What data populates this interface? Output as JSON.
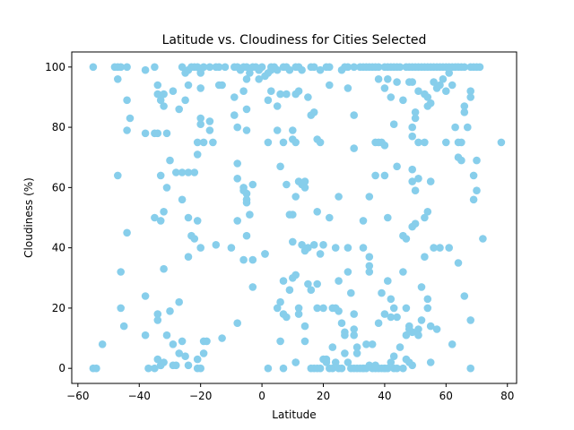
{
  "chart_data": {
    "type": "scatter",
    "title": "Latitude vs. Cloudiness for Cities Selected",
    "xlabel": "Latitude",
    "ylabel": "Cloudiness (%)",
    "xlim": [
      -62,
      83
    ],
    "ylim": [
      -5,
      105
    ],
    "xticks": [
      -60,
      -40,
      -20,
      0,
      20,
      40,
      60,
      80
    ],
    "yticks": [
      0,
      20,
      40,
      60,
      80,
      100
    ],
    "grid": false,
    "color": "#87ceeb",
    "points": [
      [
        -55,
        100
      ],
      [
        -48,
        100
      ],
      [
        -47,
        100
      ],
      [
        -46,
        100
      ],
      [
        -38,
        99
      ],
      [
        -35,
        100
      ],
      [
        -26,
        100
      ],
      [
        -24,
        99
      ],
      [
        -23,
        100
      ],
      [
        -22,
        100
      ],
      [
        -21,
        100
      ],
      [
        -20,
        99
      ],
      [
        -19,
        100
      ],
      [
        -17,
        100
      ],
      [
        -15,
        100
      ],
      [
        -14,
        100
      ],
      [
        -12,
        100
      ],
      [
        -9,
        100
      ],
      [
        -8,
        100
      ],
      [
        -7,
        99
      ],
      [
        -6,
        100
      ],
      [
        -5,
        100
      ],
      [
        -4,
        98
      ],
      [
        -3,
        100
      ],
      [
        -2,
        100
      ],
      [
        -1,
        99
      ],
      [
        0,
        100
      ],
      [
        1,
        97
      ],
      [
        2,
        98
      ],
      [
        3,
        100
      ],
      [
        4,
        100
      ],
      [
        5,
        99
      ],
      [
        7,
        100
      ],
      [
        8,
        100
      ],
      [
        9,
        99
      ],
      [
        11,
        100
      ],
      [
        12,
        100
      ],
      [
        13,
        99
      ],
      [
        16,
        100
      ],
      [
        17,
        100
      ],
      [
        19,
        99
      ],
      [
        21,
        100
      ],
      [
        22,
        100
      ],
      [
        26,
        99
      ],
      [
        28,
        100
      ],
      [
        30,
        100
      ],
      [
        32,
        100
      ],
      [
        33,
        100
      ],
      [
        34,
        100
      ],
      [
        35,
        100
      ],
      [
        36,
        100
      ],
      [
        37,
        100
      ],
      [
        38,
        100
      ],
      [
        40,
        100
      ],
      [
        41,
        100
      ],
      [
        42,
        100
      ],
      [
        43,
        100
      ],
      [
        44,
        100
      ],
      [
        45,
        100
      ],
      [
        47,
        100
      ],
      [
        48,
        100
      ],
      [
        49,
        100
      ],
      [
        50,
        100
      ],
      [
        51,
        100
      ],
      [
        52,
        100
      ],
      [
        53,
        100
      ],
      [
        54,
        100
      ],
      [
        55,
        100
      ],
      [
        56,
        100
      ],
      [
        57,
        100
      ],
      [
        58,
        100
      ],
      [
        59,
        100
      ],
      [
        60,
        100
      ],
      [
        61,
        100
      ],
      [
        62,
        100
      ],
      [
        63,
        100
      ],
      [
        64,
        100
      ],
      [
        65,
        100
      ],
      [
        66,
        100
      ],
      [
        68,
        100
      ],
      [
        69,
        100
      ],
      [
        70,
        100
      ],
      [
        71,
        100
      ],
      [
        -20,
        98
      ],
      [
        -1,
        99
      ],
      [
        27,
        100
      ],
      [
        3,
        99
      ],
      [
        -5,
        96
      ],
      [
        -44,
        100
      ],
      [
        -29,
        92
      ],
      [
        -34,
        94
      ],
      [
        -32,
        91
      ],
      [
        -32,
        87
      ],
      [
        -33,
        89
      ],
      [
        -34,
        91
      ],
      [
        -44,
        89
      ],
      [
        -43,
        83
      ],
      [
        -47,
        96
      ],
      [
        -20,
        93
      ],
      [
        -25,
        98
      ],
      [
        -20,
        83
      ],
      [
        -13,
        94
      ],
      [
        -6,
        92
      ],
      [
        -1,
        96
      ],
      [
        3,
        92
      ],
      [
        6,
        91
      ],
      [
        8,
        91
      ],
      [
        11,
        91
      ],
      [
        12,
        92
      ],
      [
        15,
        90
      ],
      [
        -24,
        94
      ],
      [
        -25,
        89
      ],
      [
        -27,
        86
      ],
      [
        -9,
        90
      ],
      [
        -5,
        86
      ],
      [
        -9,
        84
      ],
      [
        -8,
        80
      ],
      [
        -5,
        79
      ],
      [
        -17,
        79
      ],
      [
        -17,
        82
      ],
      [
        -20,
        81
      ],
      [
        -21,
        75
      ],
      [
        -19,
        75
      ],
      [
        -16,
        75
      ],
      [
        -14,
        94
      ],
      [
        2,
        89
      ],
      [
        5,
        87
      ],
      [
        7,
        75
      ],
      [
        10,
        76
      ],
      [
        11,
        75
      ],
      [
        10,
        79
      ],
      [
        2,
        75
      ],
      [
        5,
        79
      ],
      [
        16,
        84
      ],
      [
        17,
        85
      ],
      [
        18,
        76
      ],
      [
        19,
        75
      ],
      [
        22,
        94
      ],
      [
        28,
        93
      ],
      [
        30,
        84
      ],
      [
        38,
        96
      ],
      [
        40,
        93
      ],
      [
        41,
        96
      ],
      [
        42,
        90
      ],
      [
        44,
        95
      ],
      [
        46,
        89
      ],
      [
        48,
        95
      ],
      [
        49,
        95
      ],
      [
        51,
        92
      ],
      [
        53,
        91
      ],
      [
        54,
        90
      ],
      [
        54,
        87
      ],
      [
        55,
        88
      ],
      [
        56,
        95
      ],
      [
        57,
        93
      ],
      [
        58,
        94
      ],
      [
        59,
        96
      ],
      [
        60,
        92
      ],
      [
        61,
        98
      ],
      [
        62,
        94
      ],
      [
        63,
        80
      ],
      [
        64,
        75
      ],
      [
        65,
        75
      ],
      [
        66,
        87
      ],
      [
        66,
        85
      ],
      [
        67,
        80
      ],
      [
        68,
        92
      ],
      [
        68,
        90
      ],
      [
        37,
        75
      ],
      [
        38,
        75
      ],
      [
        39,
        75
      ],
      [
        40,
        74
      ],
      [
        43,
        81
      ],
      [
        49,
        80
      ],
      [
        49,
        77
      ],
      [
        50,
        85
      ],
      [
        50,
        83
      ],
      [
        51,
        75
      ],
      [
        53,
        75
      ],
      [
        60,
        75
      ],
      [
        78,
        75
      ],
      [
        -44,
        79
      ],
      [
        -38,
        78
      ],
      [
        -35,
        78
      ],
      [
        -34,
        78
      ],
      [
        -31,
        78
      ],
      [
        -30,
        69
      ],
      [
        -28,
        65
      ],
      [
        -26,
        65
      ],
      [
        -24,
        65
      ],
      [
        -22,
        65
      ],
      [
        -21,
        71
      ],
      [
        -26,
        56
      ],
      [
        -24,
        37
      ],
      [
        -21,
        49
      ],
      [
        -31,
        60
      ],
      [
        -33,
        64
      ],
      [
        -8,
        68
      ],
      [
        -8,
        63
      ],
      [
        -6,
        60
      ],
      [
        -5,
        58
      ],
      [
        -5,
        56
      ],
      [
        -6,
        59
      ],
      [
        -4,
        51
      ],
      [
        -3,
        61
      ],
      [
        -3,
        36
      ],
      [
        1,
        38
      ],
      [
        6,
        67
      ],
      [
        8,
        61
      ],
      [
        10,
        51
      ],
      [
        11,
        57
      ],
      [
        12,
        62
      ],
      [
        13,
        61
      ],
      [
        14,
        60
      ],
      [
        14,
        62
      ],
      [
        25,
        57
      ],
      [
        30,
        73
      ],
      [
        33,
        49
      ],
      [
        35,
        57
      ],
      [
        37,
        64
      ],
      [
        40,
        64
      ],
      [
        41,
        50
      ],
      [
        44,
        67
      ],
      [
        46,
        44
      ],
      [
        47,
        43
      ],
      [
        49,
        66
      ],
      [
        49,
        62
      ],
      [
        50,
        59
      ],
      [
        51,
        63
      ],
      [
        53,
        50
      ],
      [
        54,
        52
      ],
      [
        55,
        62
      ],
      [
        56,
        40
      ],
      [
        58,
        40
      ],
      [
        61,
        40
      ],
      [
        64,
        35
      ],
      [
        64,
        70
      ],
      [
        65,
        69
      ],
      [
        66,
        24
      ],
      [
        68,
        16
      ],
      [
        69,
        64
      ],
      [
        69,
        56
      ],
      [
        70,
        69
      ],
      [
        70,
        59
      ],
      [
        72,
        43
      ],
      [
        -47,
        64
      ],
      [
        -46,
        32
      ],
      [
        -46,
        20
      ],
      [
        -45,
        14
      ],
      [
        -44,
        45
      ],
      [
        -38,
        24
      ],
      [
        -38,
        11
      ],
      [
        -37,
        0
      ],
      [
        -35,
        50
      ],
      [
        -34,
        18
      ],
      [
        -34,
        16
      ],
      [
        -33,
        49
      ],
      [
        -32,
        52
      ],
      [
        -32,
        33
      ],
      [
        -31,
        11
      ],
      [
        -30,
        19
      ],
      [
        -29,
        8
      ],
      [
        -28,
        1
      ],
      [
        -27,
        5
      ],
      [
        -27,
        22
      ],
      [
        -26,
        9
      ],
      [
        -25,
        4
      ],
      [
        -24,
        50
      ],
      [
        -23,
        44
      ],
      [
        -22,
        43
      ],
      [
        -21,
        3
      ],
      [
        -20,
        40
      ],
      [
        -19,
        9
      ],
      [
        -18,
        9
      ],
      [
        -15,
        41
      ],
      [
        -13,
        10
      ],
      [
        -10,
        40
      ],
      [
        -8,
        49
      ],
      [
        -8,
        15
      ],
      [
        -6,
        36
      ],
      [
        -5,
        55
      ],
      [
        -5,
        44
      ],
      [
        -3,
        27
      ],
      [
        1,
        38
      ],
      [
        5,
        20
      ],
      [
        6,
        22
      ],
      [
        6,
        9
      ],
      [
        7,
        29
      ],
      [
        7,
        18
      ],
      [
        8,
        17
      ],
      [
        9,
        26
      ],
      [
        9,
        51
      ],
      [
        10,
        42
      ],
      [
        10,
        30
      ],
      [
        11,
        31
      ],
      [
        11,
        2
      ],
      [
        12,
        18
      ],
      [
        12,
        20
      ],
      [
        13,
        41
      ],
      [
        14,
        39
      ],
      [
        14,
        14
      ],
      [
        15,
        28
      ],
      [
        15,
        40
      ],
      [
        16,
        26
      ],
      [
        17,
        41
      ],
      [
        18,
        52
      ],
      [
        18,
        28
      ],
      [
        18,
        20
      ],
      [
        19,
        38
      ],
      [
        20,
        41
      ],
      [
        20,
        20
      ],
      [
        21,
        3
      ],
      [
        22,
        50
      ],
      [
        23,
        20
      ],
      [
        23,
        7
      ],
      [
        24,
        40
      ],
      [
        24,
        20
      ],
      [
        25,
        29
      ],
      [
        25,
        19
      ],
      [
        26,
        15
      ],
      [
        27,
        12
      ],
      [
        27,
        11
      ],
      [
        28,
        40
      ],
      [
        28,
        32
      ],
      [
        29,
        25
      ],
      [
        30,
        18
      ],
      [
        30,
        13
      ],
      [
        30,
        11
      ],
      [
        31,
        5
      ],
      [
        31,
        7
      ],
      [
        33,
        40
      ],
      [
        33,
        0
      ],
      [
        34,
        8
      ],
      [
        35,
        34
      ],
      [
        35,
        37
      ],
      [
        35,
        32
      ],
      [
        36,
        8
      ],
      [
        37,
        0
      ],
      [
        38,
        15
      ],
      [
        39,
        25
      ],
      [
        40,
        18
      ],
      [
        40,
        0
      ],
      [
        41,
        29
      ],
      [
        42,
        23
      ],
      [
        42,
        17
      ],
      [
        43,
        20
      ],
      [
        43,
        4
      ],
      [
        44,
        17
      ],
      [
        45,
        7
      ],
      [
        46,
        32
      ],
      [
        47,
        20
      ],
      [
        47,
        11
      ],
      [
        48,
        14
      ],
      [
        48,
        13
      ],
      [
        49,
        12
      ],
      [
        49,
        47
      ],
      [
        50,
        48
      ],
      [
        51,
        13
      ],
      [
        51,
        11
      ],
      [
        52,
        16
      ],
      [
        52,
        27
      ],
      [
        53,
        37
      ],
      [
        54,
        20
      ],
      [
        54,
        23
      ],
      [
        55,
        2
      ],
      [
        55,
        14
      ],
      [
        57,
        13
      ],
      [
        62,
        8
      ],
      [
        68,
        0
      ],
      [
        -55,
        0
      ],
      [
        -54,
        0
      ],
      [
        -52,
        8
      ],
      [
        -35,
        0
      ],
      [
        -34,
        3
      ],
      [
        -33,
        1
      ],
      [
        -32,
        2
      ],
      [
        -29,
        1
      ],
      [
        -24,
        1
      ],
      [
        -21,
        0
      ],
      [
        -20,
        0
      ],
      [
        -19,
        5
      ],
      [
        2,
        0
      ],
      [
        7,
        0
      ],
      [
        11,
        2
      ],
      [
        14,
        9
      ],
      [
        16,
        0
      ],
      [
        17,
        0
      ],
      [
        18,
        0
      ],
      [
        19,
        0
      ],
      [
        20,
        3
      ],
      [
        21,
        2
      ],
      [
        22,
        0
      ],
      [
        23,
        0
      ],
      [
        24,
        2
      ],
      [
        25,
        0
      ],
      [
        26,
        0
      ],
      [
        27,
        5
      ],
      [
        28,
        2
      ],
      [
        29,
        0
      ],
      [
        30,
        0
      ],
      [
        31,
        0
      ],
      [
        32,
        0
      ],
      [
        33,
        0
      ],
      [
        34,
        0
      ],
      [
        35,
        1
      ],
      [
        36,
        0
      ],
      [
        37,
        1
      ],
      [
        38,
        0
      ],
      [
        39,
        0
      ],
      [
        40,
        0
      ],
      [
        41,
        0
      ],
      [
        42,
        2
      ],
      [
        43,
        0
      ],
      [
        44,
        0
      ],
      [
        46,
        0
      ],
      [
        47,
        3
      ],
      [
        48,
        2
      ],
      [
        49,
        1
      ],
      [
        -33,
        1
      ]
    ]
  }
}
